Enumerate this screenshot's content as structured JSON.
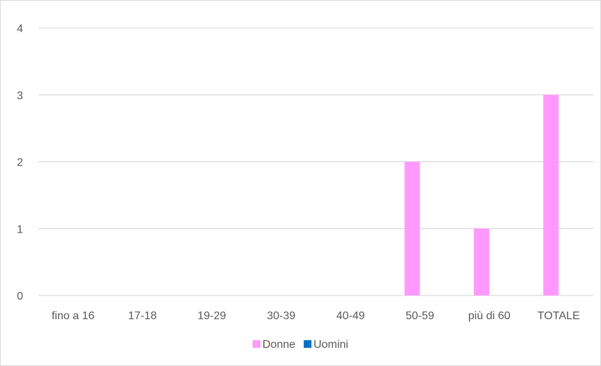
{
  "chart_data": {
    "type": "bar",
    "categories": [
      "fino a 16",
      "17-18",
      "19-29",
      "30-39",
      "40-49",
      "50-59",
      "più di 60",
      "TOTALE"
    ],
    "series": [
      {
        "name": "Donne",
        "color": "#ff99ff",
        "values": [
          0,
          0,
          0,
          0,
          0,
          2,
          1,
          3
        ]
      },
      {
        "name": "Uomini",
        "color": "#0070c0",
        "values": [
          0,
          0,
          0,
          0,
          0,
          0,
          0,
          0
        ]
      }
    ],
    "y_ticks": [
      "0",
      "1",
      "2",
      "3",
      "4"
    ],
    "ylim": [
      0,
      4
    ],
    "grid": true,
    "legend_position": "bottom",
    "gridline_color": "#d9d9d9"
  }
}
